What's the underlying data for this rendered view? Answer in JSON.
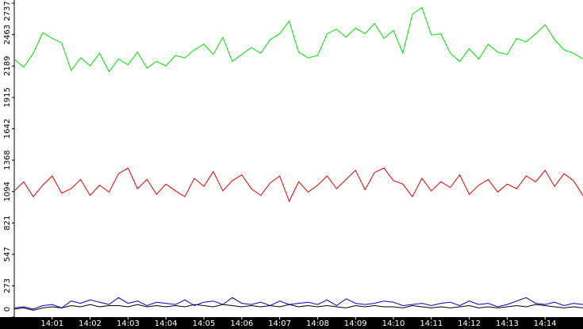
{
  "chart_data": {
    "type": "line",
    "x": [
      0,
      0.25,
      0.5,
      0.75,
      1,
      1.25,
      1.5,
      1.75,
      2,
      2.25,
      2.5,
      2.75,
      3,
      3.25,
      3.5,
      3.75,
      4,
      4.25,
      4.5,
      4.75,
      5,
      5.25,
      5.5,
      5.75,
      6,
      6.25,
      6.5,
      6.75,
      7,
      7.25,
      7.5,
      7.75,
      8,
      8.25,
      8.5,
      8.75,
      9,
      9.25,
      9.5,
      9.75,
      10,
      10.25,
      10.5,
      10.75,
      11,
      11.25,
      11.5,
      11.75,
      12,
      12.25,
      12.5,
      12.75,
      13,
      13.25,
      13.5,
      13.75,
      14,
      14.25,
      14.5,
      14.75,
      15
    ],
    "xlim": [
      0,
      15
    ],
    "xticks": [
      {
        "value": 1,
        "label": "14:01"
      },
      {
        "value": 2,
        "label": "14:02"
      },
      {
        "value": 3,
        "label": "14:03"
      },
      {
        "value": 4,
        "label": "14:04"
      },
      {
        "value": 5,
        "label": "14:05"
      },
      {
        "value": 6,
        "label": "14:06"
      },
      {
        "value": 7,
        "label": "14:07"
      },
      {
        "value": 8,
        "label": "14:08"
      },
      {
        "value": 9,
        "label": "14:09"
      },
      {
        "value": 10,
        "label": "14:10"
      },
      {
        "value": 11,
        "label": "14:11"
      },
      {
        "value": 12,
        "label": "14:12"
      },
      {
        "value": 13,
        "label": "14:13"
      },
      {
        "value": 14,
        "label": "14:14"
      }
    ],
    "ylim": [
      0,
      2737
    ],
    "yticks": [
      0,
      273,
      547,
      821,
      1094,
      1368,
      1642,
      1915,
      2189,
      2463,
      2737
    ],
    "series": [
      {
        "color": "#00e000",
        "values": [
          2250,
          2180,
          2300,
          2480,
          2430,
          2390,
          2150,
          2260,
          2190,
          2300,
          2140,
          2250,
          2200,
          2310,
          2170,
          2230,
          2190,
          2280,
          2260,
          2330,
          2380,
          2290,
          2440,
          2230,
          2290,
          2350,
          2300,
          2420,
          2470,
          2580,
          2310,
          2260,
          2280,
          2470,
          2510,
          2440,
          2520,
          2470,
          2560,
          2430,
          2500,
          2300,
          2640,
          2700,
          2460,
          2470,
          2300,
          2230,
          2340,
          2250,
          2380,
          2310,
          2290,
          2430,
          2400,
          2470,
          2550,
          2420,
          2330,
          2300,
          2250
        ]
      },
      {
        "color": "#e00000",
        "values": [
          1100,
          1180,
          1050,
          1150,
          1230,
          1080,
          1120,
          1200,
          1060,
          1150,
          1090,
          1250,
          1300,
          1120,
          1200,
          1070,
          1160,
          1100,
          1050,
          1210,
          1140,
          1270,
          1100,
          1190,
          1240,
          1120,
          1060,
          1170,
          1230,
          1010,
          1180,
          1090,
          1150,
          1230,
          1120,
          1200,
          1280,
          1110,
          1260,
          1300,
          1190,
          1160,
          1050,
          1210,
          1100,
          1180,
          1130,
          1240,
          1070,
          1150,
          1200,
          1090,
          1160,
          1120,
          1230,
          1180,
          1280,
          1140,
          1250,
          1190,
          1060
        ]
      },
      {
        "color": "#000000",
        "values": [
          70,
          80,
          60,
          80,
          90,
          80,
          100,
          90,
          110,
          90,
          100,
          100,
          90,
          110,
          90,
          100,
          90,
          100,
          90,
          110,
          100,
          90,
          110,
          100,
          90,
          100,
          90,
          100,
          90,
          110,
          90,
          100,
          90,
          100,
          90,
          80,
          100,
          90,
          100,
          90,
          90,
          80,
          100,
          90,
          80,
          90,
          80,
          90,
          100,
          80,
          90,
          80,
          90,
          100,
          90,
          110,
          100,
          90,
          80,
          90,
          80
        ]
      },
      {
        "color": "#0000c0",
        "values": [
          80,
          90,
          70,
          100,
          110,
          80,
          140,
          120,
          150,
          130,
          110,
          170,
          120,
          140,
          100,
          130,
          120,
          110,
          150,
          100,
          130,
          140,
          110,
          170,
          120,
          110,
          130,
          100,
          140,
          110,
          120,
          130,
          110,
          150,
          100,
          160,
          120,
          110,
          120,
          140,
          130,
          100,
          110,
          120,
          100,
          120,
          130,
          100,
          140,
          110,
          120,
          90,
          110,
          140,
          170,
          120,
          110,
          130,
          100,
          120,
          110
        ]
      }
    ]
  }
}
